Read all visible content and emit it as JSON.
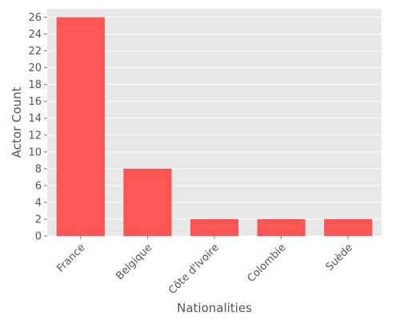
{
  "chart_data": {
    "type": "bar",
    "title": "",
    "xlabel": "Nationalities",
    "ylabel": "Actor Count",
    "categories": [
      "France",
      "Belgique",
      "Côte d'Ivoire",
      "Colombie",
      "Suède"
    ],
    "values": [
      26,
      8,
      2,
      2,
      2
    ],
    "ylim": [
      0,
      27
    ],
    "yticks": [
      0,
      2,
      4,
      6,
      8,
      10,
      12,
      14,
      16,
      18,
      20,
      22,
      24,
      26
    ],
    "grid": true,
    "legend": "none",
    "colors": {
      "bar": "#ff5555",
      "plot_background": "#e8e8e8",
      "grid": "#ffffff",
      "text": "#555555"
    }
  }
}
